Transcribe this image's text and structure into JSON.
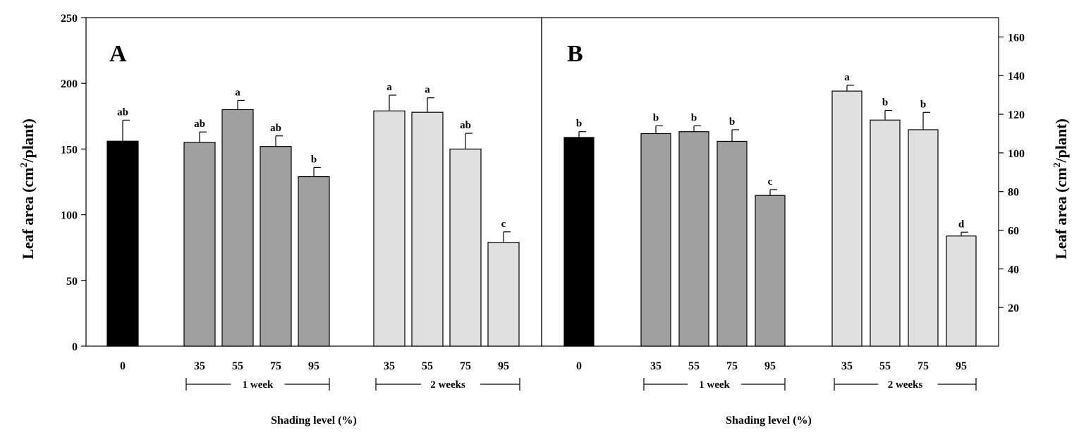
{
  "chart_data": [
    {
      "type": "bar",
      "panel_label": "A",
      "ylabel": "Leaf area (cm²/plant)",
      "ylabel_parts": {
        "pre": "Leaf area (cm",
        "sup": "2",
        "post": "/plant)"
      },
      "xlabel": "Shading level (%)",
      "y_axis_side": "left",
      "ylim": [
        0,
        250
      ],
      "yticks": [
        0,
        50,
        100,
        150,
        200,
        250
      ],
      "groups": [
        "1 week",
        "2 weeks"
      ],
      "colors": {
        "control": "#000000",
        "1 week": "#a0a0a0",
        "2 weeks": "#e0e0e0"
      },
      "bars": [
        {
          "group": "control",
          "label": "0",
          "value": 156,
          "error": 16,
          "letter": "ab"
        },
        {
          "group": "1 week",
          "label": "35",
          "value": 155,
          "error": 8,
          "letter": "ab"
        },
        {
          "group": "1 week",
          "label": "55",
          "value": 180,
          "error": 7,
          "letter": "a"
        },
        {
          "group": "1 week",
          "label": "75",
          "value": 152,
          "error": 8,
          "letter": "ab"
        },
        {
          "group": "1 week",
          "label": "95",
          "value": 129,
          "error": 7,
          "letter": "b"
        },
        {
          "group": "2 weeks",
          "label": "35",
          "value": 179,
          "error": 12,
          "letter": "a"
        },
        {
          "group": "2 weeks",
          "label": "55",
          "value": 178,
          "error": 11,
          "letter": "a"
        },
        {
          "group": "2 weeks",
          "label": "75",
          "value": 150,
          "error": 12,
          "letter": "ab"
        },
        {
          "group": "2 weeks",
          "label": "95",
          "value": 79,
          "error": 8,
          "letter": "c"
        }
      ]
    },
    {
      "type": "bar",
      "panel_label": "B",
      "ylabel": "Leaf area (cm²/plant)",
      "ylabel_parts": {
        "pre": "Leaf area (cm",
        "sup": "2",
        "post": "/plant)"
      },
      "xlabel": "Shading level (%)",
      "y_axis_side": "right",
      "ylim": [
        0,
        170
      ],
      "yticks": [
        20,
        40,
        60,
        80,
        100,
        120,
        140,
        160
      ],
      "groups": [
        "1 week",
        "2 weeks"
      ],
      "colors": {
        "control": "#000000",
        "1 week": "#a0a0a0",
        "2 weeks": "#e0e0e0"
      },
      "bars": [
        {
          "group": "control",
          "label": "0",
          "value": 108,
          "error": 3,
          "letter": "b"
        },
        {
          "group": "1 week",
          "label": "35",
          "value": 110,
          "error": 4,
          "letter": "b"
        },
        {
          "group": "1 week",
          "label": "55",
          "value": 111,
          "error": 3,
          "letter": "b"
        },
        {
          "group": "1 week",
          "label": "75",
          "value": 106,
          "error": 6,
          "letter": "b"
        },
        {
          "group": "1 week",
          "label": "95",
          "value": 78,
          "error": 3,
          "letter": "c"
        },
        {
          "group": "2 weeks",
          "label": "35",
          "value": 132,
          "error": 3,
          "letter": "a"
        },
        {
          "group": "2 weeks",
          "label": "55",
          "value": 117,
          "error": 5,
          "letter": "b"
        },
        {
          "group": "2 weeks",
          "label": "75",
          "value": 112,
          "error": 9,
          "letter": "b"
        },
        {
          "group": "2 weeks",
          "label": "95",
          "value": 57,
          "error": 2,
          "letter": "d"
        }
      ]
    }
  ]
}
